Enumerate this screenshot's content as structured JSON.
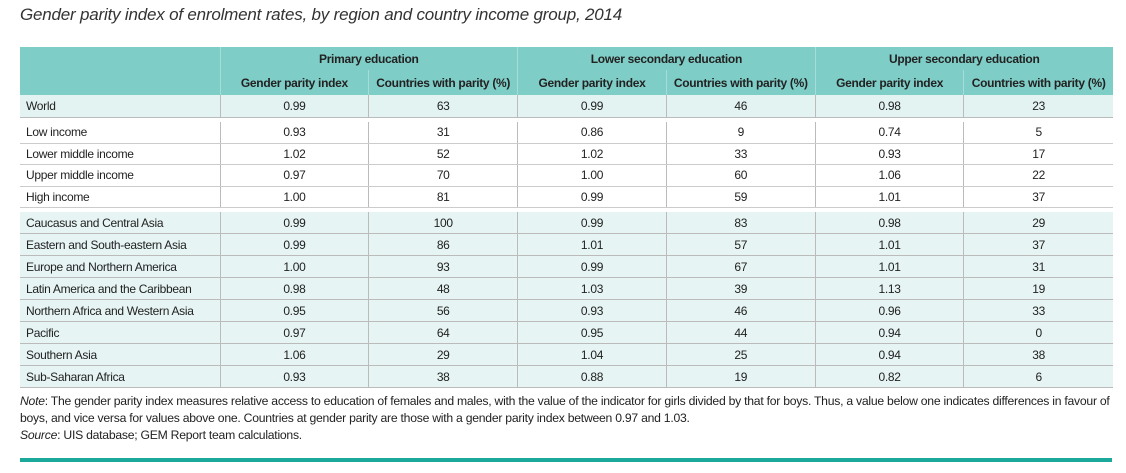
{
  "title": "Gender parity index of enrolment rates, by region and country income group, 2014",
  "groups": [
    "Primary education",
    "Lower secondary education",
    "Upper secondary education"
  ],
  "subheaders": [
    "Gender parity index",
    "Countries with parity (%)",
    "Gender parity index",
    "Countries with parity (%)",
    "Gender parity index",
    "Countries with parity (%)"
  ],
  "world": {
    "label": "World",
    "values": [
      "0.99",
      "63",
      "0.99",
      "46",
      "0.98",
      "23"
    ]
  },
  "income_groups": [
    {
      "label": "Low income",
      "values": [
        "0.93",
        "31",
        "0.86",
        "9",
        "0.74",
        "5"
      ]
    },
    {
      "label": "Lower middle income",
      "values": [
        "1.02",
        "52",
        "1.02",
        "33",
        "0.93",
        "17"
      ]
    },
    {
      "label": "Upper middle income",
      "values": [
        "0.97",
        "70",
        "1.00",
        "60",
        "1.06",
        "22"
      ]
    },
    {
      "label": "High income",
      "values": [
        "1.00",
        "81",
        "0.99",
        "59",
        "1.01",
        "37"
      ]
    }
  ],
  "regions": [
    {
      "label": "Caucasus and Central Asia",
      "values": [
        "0.99",
        "100",
        "0.99",
        "83",
        "0.98",
        "29"
      ]
    },
    {
      "label": "Eastern and South-eastern Asia",
      "values": [
        "0.99",
        "86",
        "1.01",
        "57",
        "1.01",
        "37"
      ]
    },
    {
      "label": "Europe and Northern America",
      "values": [
        "1.00",
        "93",
        "0.99",
        "67",
        "1.01",
        "31"
      ]
    },
    {
      "label": "Latin America and the Caribbean",
      "values": [
        "0.98",
        "48",
        "1.03",
        "39",
        "1.13",
        "19"
      ]
    },
    {
      "label": "Northern Africa and Western Asia",
      "values": [
        "0.95",
        "56",
        "0.93",
        "46",
        "0.96",
        "33"
      ]
    },
    {
      "label": "Pacific",
      "values": [
        "0.97",
        "64",
        "0.95",
        "44",
        "0.94",
        "0"
      ]
    },
    {
      "label": "Southern Asia",
      "values": [
        "1.06",
        "29",
        "1.04",
        "25",
        "0.94",
        "38"
      ]
    },
    {
      "label": "Sub-Saharan Africa",
      "values": [
        "0.93",
        "38",
        "0.88",
        "19",
        "0.82",
        "6"
      ]
    }
  ],
  "note": {
    "note_label": "Note",
    "note_text": ": The gender parity index measures relative access to education of females and males, with the value of the indicator for girls divided by that for boys. Thus, a value below one indicates differences in favour of boys, and vice versa for values above one. Countries at gender parity are those with a gender parity index between 0.97 and 1.03.",
    "source_label": "Source",
    "source_text": ": UIS database; GEM Report team calculations."
  },
  "colors": {
    "header": "#7fcdc7",
    "shaded_row": "#e6f4f3",
    "rule": "#1aa99a"
  }
}
